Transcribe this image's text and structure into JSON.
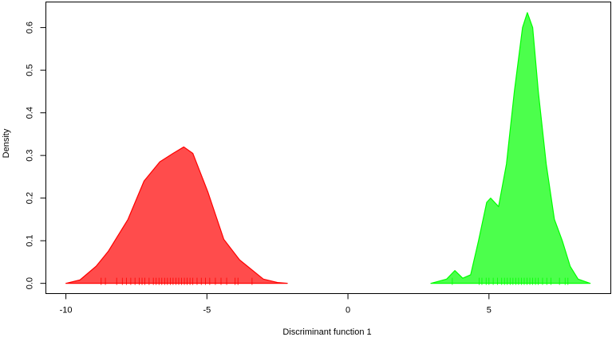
{
  "chart_data": {
    "type": "density",
    "xlabel": "Discriminant function 1",
    "ylabel": "Density",
    "xlim": [
      -10.71,
      9.32
    ],
    "ylim": [
      -0.024,
      0.66
    ],
    "xticks": [
      -10,
      -5,
      0,
      5
    ],
    "yticks": [
      {
        "value": 0,
        "label": "0.0"
      },
      0.1,
      0.2,
      0.3,
      0.4,
      0.5,
      0.6
    ],
    "series": [
      {
        "color": "#ff0000",
        "x": [
          -10,
          -9.5,
          -8.93,
          -8.5,
          -7.8,
          -7.23,
          -6.67,
          -6.2,
          -5.82,
          -5.5,
          -4.97,
          -4.4,
          -3.84,
          -3.0,
          -2.5,
          -2.15
        ],
        "values": [
          0,
          0.008,
          0.04,
          0.075,
          0.15,
          0.24,
          0.285,
          0.305,
          0.32,
          0.305,
          0.215,
          0.103,
          0.055,
          0.01,
          0.002,
          0
        ],
        "rug": [
          -8.75,
          -8.6,
          -8.2,
          -8.0,
          -7.85,
          -7.7,
          -7.55,
          -7.4,
          -7.3,
          -7.2,
          -7.05,
          -6.9,
          -6.8,
          -6.7,
          -6.6,
          -6.5,
          -6.4,
          -6.3,
          -6.2,
          -6.1,
          -6.0,
          -5.9,
          -5.8,
          -5.7,
          -5.6,
          -5.5,
          -5.35,
          -5.2,
          -5.05,
          -4.9,
          -4.7,
          -4.5,
          -4.3,
          -4.0,
          -3.9,
          -3.4
        ]
      },
      {
        "color": "#00ff00",
        "x": [
          2.94,
          3.5,
          3.79,
          4.07,
          4.35,
          4.63,
          4.92,
          5.06,
          5.34,
          5.62,
          5.9,
          6.19,
          6.36,
          6.55,
          6.75,
          7.03,
          7.32,
          7.6,
          7.88,
          8.16,
          8.59
        ],
        "values": [
          0,
          0.01,
          0.03,
          0.012,
          0.02,
          0.1,
          0.19,
          0.2,
          0.18,
          0.28,
          0.45,
          0.6,
          0.635,
          0.6,
          0.45,
          0.28,
          0.15,
          0.1,
          0.04,
          0.01,
          0
        ],
        "rug": [
          3.7,
          4.65,
          4.75,
          4.9,
          5.0,
          5.15,
          5.3,
          5.45,
          5.55,
          5.65,
          5.75,
          5.85,
          5.95,
          6.05,
          6.15,
          6.25,
          6.35,
          6.45,
          6.55,
          6.65,
          6.75,
          6.9,
          7.05,
          7.2,
          7.5,
          7.7,
          7.8
        ]
      }
    ]
  }
}
